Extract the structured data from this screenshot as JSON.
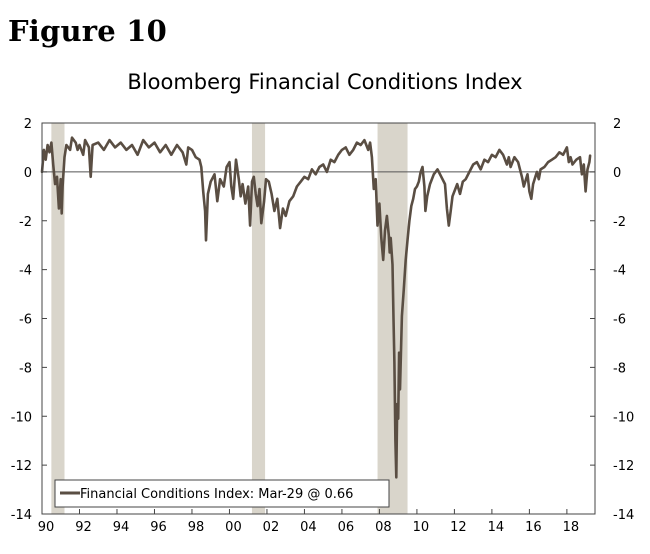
{
  "figure_label": "Figure 10",
  "chart_data": {
    "type": "line",
    "title": "Bloomberg Financial Conditions Index",
    "xlabel": "",
    "ylabel": "",
    "xlim": [
      1990,
      2019.5
    ],
    "ylim": [
      -14,
      2
    ],
    "x_ticks": [
      {
        "value": 1990,
        "label": "90"
      },
      {
        "value": 1992,
        "label": "92"
      },
      {
        "value": 1994,
        "label": "94"
      },
      {
        "value": 1996,
        "label": "96"
      },
      {
        "value": 1998,
        "label": "98"
      },
      {
        "value": 2000,
        "label": "00"
      },
      {
        "value": 2002,
        "label": "02"
      },
      {
        "value": 2004,
        "label": "04"
      },
      {
        "value": 2006,
        "label": "06"
      },
      {
        "value": 2008,
        "label": "08"
      },
      {
        "value": 2010,
        "label": "10"
      },
      {
        "value": 2012,
        "label": "12"
      },
      {
        "value": 2014,
        "label": "14"
      },
      {
        "value": 2016,
        "label": "16"
      },
      {
        "value": 2018,
        "label": "18"
      }
    ],
    "y_ticks": [
      2,
      0,
      -2,
      -4,
      -6,
      -8,
      -10,
      -12,
      -14
    ],
    "zero_line": true,
    "recessions": [
      [
        1990.5,
        1991.2
      ],
      [
        2001.2,
        2001.9
      ],
      [
        2007.9,
        2009.5
      ]
    ],
    "legend": {
      "position": "bottom-left",
      "entries": [
        "Financial Conditions Index: Mar-29 @ 0.66"
      ]
    },
    "series": [
      {
        "name": "Financial Conditions Index",
        "color": "#5a4e43",
        "points": [
          [
            1990.0,
            0.0
          ],
          [
            1990.1,
            0.9
          ],
          [
            1990.2,
            0.5
          ],
          [
            1990.3,
            1.1
          ],
          [
            1990.4,
            0.8
          ],
          [
            1990.5,
            1.2
          ],
          [
            1990.6,
            0.3
          ],
          [
            1990.7,
            -0.5
          ],
          [
            1990.8,
            -0.2
          ],
          [
            1990.9,
            -1.5
          ],
          [
            1991.0,
            -0.3
          ],
          [
            1991.05,
            -1.7
          ],
          [
            1991.1,
            -0.6
          ],
          [
            1991.2,
            0.6
          ],
          [
            1991.3,
            1.1
          ],
          [
            1991.5,
            0.9
          ],
          [
            1991.6,
            1.4
          ],
          [
            1991.8,
            1.2
          ],
          [
            1991.9,
            0.9
          ],
          [
            1992.0,
            1.1
          ],
          [
            1992.2,
            0.7
          ],
          [
            1992.3,
            1.3
          ],
          [
            1992.5,
            1.0
          ],
          [
            1992.6,
            -0.2
          ],
          [
            1992.7,
            1.1
          ],
          [
            1993.0,
            1.2
          ],
          [
            1993.3,
            0.9
          ],
          [
            1993.6,
            1.3
          ],
          [
            1993.9,
            1.0
          ],
          [
            1994.2,
            1.2
          ],
          [
            1994.5,
            0.9
          ],
          [
            1994.8,
            1.1
          ],
          [
            1995.1,
            0.7
          ],
          [
            1995.4,
            1.3
          ],
          [
            1995.7,
            1.0
          ],
          [
            1996.0,
            1.2
          ],
          [
            1996.3,
            0.8
          ],
          [
            1996.6,
            1.1
          ],
          [
            1996.9,
            0.7
          ],
          [
            1997.2,
            1.1
          ],
          [
            1997.5,
            0.8
          ],
          [
            1997.7,
            0.3
          ],
          [
            1997.8,
            1.0
          ],
          [
            1998.0,
            0.9
          ],
          [
            1998.2,
            0.6
          ],
          [
            1998.4,
            0.5
          ],
          [
            1998.5,
            0.2
          ],
          [
            1998.6,
            -0.8
          ],
          [
            1998.7,
            -1.6
          ],
          [
            1998.75,
            -2.8
          ],
          [
            1998.85,
            -0.9
          ],
          [
            1999.0,
            -0.4
          ],
          [
            1999.2,
            -0.1
          ],
          [
            1999.35,
            -1.2
          ],
          [
            1999.5,
            -0.3
          ],
          [
            1999.7,
            -0.6
          ],
          [
            1999.85,
            0.2
          ],
          [
            2000.0,
            0.4
          ],
          [
            2000.1,
            -0.6
          ],
          [
            2000.2,
            -1.1
          ],
          [
            2000.35,
            0.5
          ],
          [
            2000.5,
            -0.3
          ],
          [
            2000.6,
            -1.0
          ],
          [
            2000.7,
            -0.5
          ],
          [
            2000.85,
            -1.3
          ],
          [
            2001.0,
            -0.6
          ],
          [
            2001.1,
            -2.2
          ],
          [
            2001.2,
            -0.4
          ],
          [
            2001.3,
            -0.2
          ],
          [
            2001.4,
            -0.9
          ],
          [
            2001.5,
            -1.4
          ],
          [
            2001.6,
            -0.7
          ],
          [
            2001.7,
            -2.1
          ],
          [
            2001.85,
            -1.2
          ],
          [
            2001.95,
            -0.3
          ],
          [
            2002.1,
            -0.4
          ],
          [
            2002.25,
            -0.9
          ],
          [
            2002.4,
            -1.6
          ],
          [
            2002.55,
            -1.1
          ],
          [
            2002.7,
            -2.3
          ],
          [
            2002.85,
            -1.5
          ],
          [
            2003.0,
            -1.8
          ],
          [
            2003.2,
            -1.2
          ],
          [
            2003.4,
            -1.0
          ],
          [
            2003.6,
            -0.6
          ],
          [
            2003.8,
            -0.4
          ],
          [
            2004.0,
            -0.2
          ],
          [
            2004.2,
            -0.3
          ],
          [
            2004.4,
            0.1
          ],
          [
            2004.6,
            -0.1
          ],
          [
            2004.8,
            0.2
          ],
          [
            2005.0,
            0.3
          ],
          [
            2005.2,
            0.0
          ],
          [
            2005.4,
            0.5
          ],
          [
            2005.6,
            0.4
          ],
          [
            2005.8,
            0.7
          ],
          [
            2006.0,
            0.9
          ],
          [
            2006.2,
            1.0
          ],
          [
            2006.4,
            0.7
          ],
          [
            2006.6,
            0.9
          ],
          [
            2006.8,
            1.2
          ],
          [
            2007.0,
            1.1
          ],
          [
            2007.2,
            1.3
          ],
          [
            2007.4,
            0.9
          ],
          [
            2007.5,
            1.2
          ],
          [
            2007.6,
            0.6
          ],
          [
            2007.7,
            -0.7
          ],
          [
            2007.8,
            -0.3
          ],
          [
            2007.9,
            -2.2
          ],
          [
            2008.0,
            -1.3
          ],
          [
            2008.1,
            -2.7
          ],
          [
            2008.2,
            -3.6
          ],
          [
            2008.3,
            -2.4
          ],
          [
            2008.4,
            -1.8
          ],
          [
            2008.5,
            -2.6
          ],
          [
            2008.55,
            -3.3
          ],
          [
            2008.6,
            -2.7
          ],
          [
            2008.7,
            -3.8
          ],
          [
            2008.75,
            -6.0
          ],
          [
            2008.8,
            -7.8
          ],
          [
            2008.85,
            -11.0
          ],
          [
            2008.9,
            -12.5
          ],
          [
            2008.95,
            -9.5
          ],
          [
            2009.0,
            -10.1
          ],
          [
            2009.05,
            -7.4
          ],
          [
            2009.1,
            -8.9
          ],
          [
            2009.2,
            -5.9
          ],
          [
            2009.3,
            -4.8
          ],
          [
            2009.4,
            -3.6
          ],
          [
            2009.5,
            -2.8
          ],
          [
            2009.6,
            -2.0
          ],
          [
            2009.7,
            -1.4
          ],
          [
            2009.8,
            -1.1
          ],
          [
            2009.9,
            -0.7
          ],
          [
            2010.0,
            -0.6
          ],
          [
            2010.1,
            -0.4
          ],
          [
            2010.2,
            0.0
          ],
          [
            2010.3,
            0.2
          ],
          [
            2010.4,
            -0.6
          ],
          [
            2010.45,
            -1.6
          ],
          [
            2010.55,
            -1.0
          ],
          [
            2010.7,
            -0.5
          ],
          [
            2010.9,
            -0.1
          ],
          [
            2011.1,
            0.1
          ],
          [
            2011.3,
            -0.2
          ],
          [
            2011.5,
            -0.5
          ],
          [
            2011.6,
            -1.5
          ],
          [
            2011.7,
            -2.2
          ],
          [
            2011.8,
            -1.6
          ],
          [
            2011.9,
            -1.0
          ],
          [
            2012.0,
            -0.8
          ],
          [
            2012.15,
            -0.5
          ],
          [
            2012.3,
            -0.9
          ],
          [
            2012.45,
            -0.4
          ],
          [
            2012.6,
            -0.3
          ],
          [
            2012.8,
            0.0
          ],
          [
            2013.0,
            0.3
          ],
          [
            2013.2,
            0.4
          ],
          [
            2013.4,
            0.1
          ],
          [
            2013.6,
            0.5
          ],
          [
            2013.8,
            0.4
          ],
          [
            2014.0,
            0.7
          ],
          [
            2014.2,
            0.6
          ],
          [
            2014.4,
            0.9
          ],
          [
            2014.6,
            0.7
          ],
          [
            2014.8,
            0.3
          ],
          [
            2014.9,
            0.6
          ],
          [
            2015.0,
            0.2
          ],
          [
            2015.2,
            0.6
          ],
          [
            2015.4,
            0.4
          ],
          [
            2015.6,
            -0.2
          ],
          [
            2015.7,
            -0.6
          ],
          [
            2015.9,
            -0.1
          ],
          [
            2016.0,
            -0.8
          ],
          [
            2016.1,
            -1.1
          ],
          [
            2016.2,
            -0.5
          ],
          [
            2016.4,
            0.0
          ],
          [
            2016.5,
            -0.3
          ],
          [
            2016.6,
            0.1
          ],
          [
            2016.8,
            0.2
          ],
          [
            2017.0,
            0.4
          ],
          [
            2017.2,
            0.5
          ],
          [
            2017.4,
            0.6
          ],
          [
            2017.6,
            0.8
          ],
          [
            2017.8,
            0.7
          ],
          [
            2018.0,
            1.0
          ],
          [
            2018.1,
            0.4
          ],
          [
            2018.2,
            0.6
          ],
          [
            2018.3,
            0.3
          ],
          [
            2018.5,
            0.5
          ],
          [
            2018.7,
            0.6
          ],
          [
            2018.8,
            -0.1
          ],
          [
            2018.9,
            0.3
          ],
          [
            2019.0,
            -0.8
          ],
          [
            2019.05,
            -0.3
          ],
          [
            2019.1,
            0.1
          ],
          [
            2019.2,
            0.4
          ],
          [
            2019.24,
            0.66
          ]
        ]
      }
    ]
  }
}
